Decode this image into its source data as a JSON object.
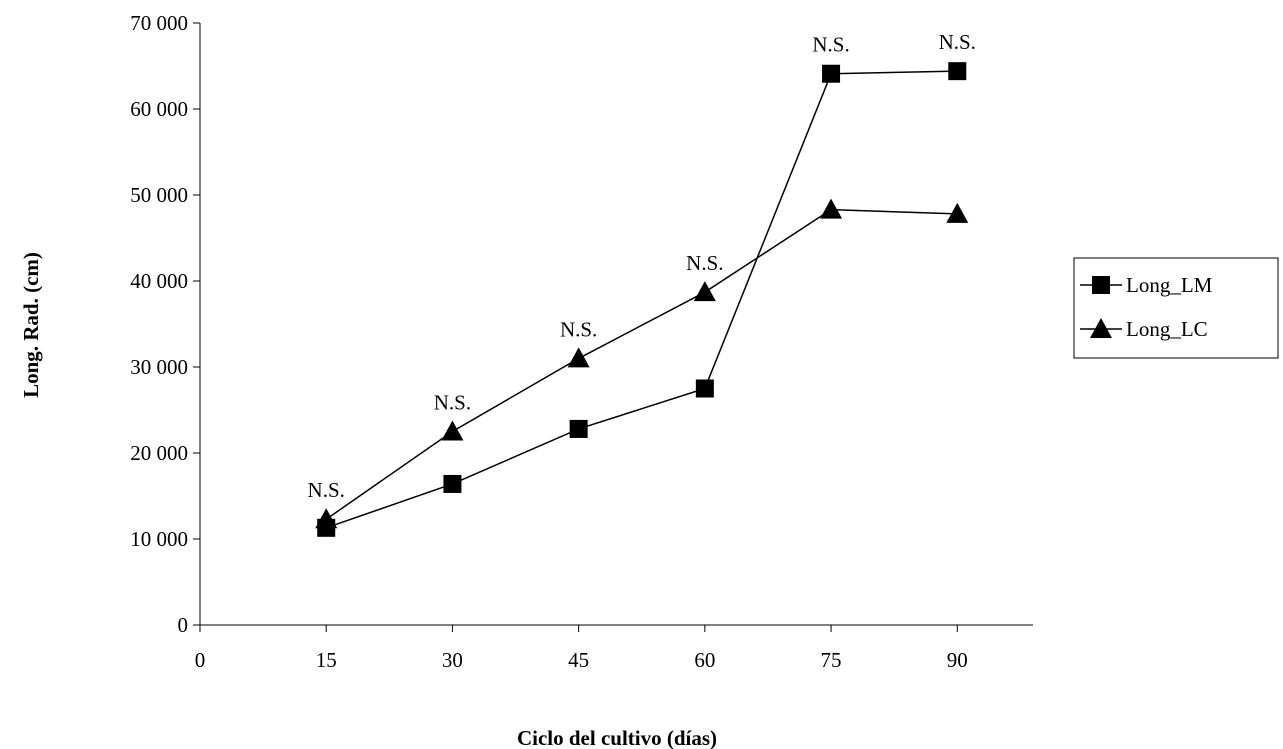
{
  "chart_data": {
    "type": "line",
    "title": "",
    "xlabel": "Ciclo del cultivo (días)",
    "ylabel": "Long. Rad. (cm)",
    "xlim": [
      0,
      99
    ],
    "ylim": [
      0,
      70000
    ],
    "x_ticks": [
      0,
      15,
      30,
      45,
      60,
      75,
      90
    ],
    "y_ticks": [
      0,
      10000,
      20000,
      30000,
      40000,
      50000,
      60000,
      70000
    ],
    "y_tick_labels": [
      "0",
      "10 000",
      "20 000",
      "30 000",
      "40 000",
      "50 000",
      "60 000",
      "70 000"
    ],
    "grid": false,
    "legend_position": "right",
    "x": [
      15,
      30,
      45,
      60,
      75,
      90
    ],
    "series": [
      {
        "name": "Long_LM",
        "marker": "square",
        "values": [
          11300,
          16400,
          22800,
          27500,
          64100,
          64400
        ]
      },
      {
        "name": "Long_LC",
        "marker": "triangle",
        "values": [
          12300,
          22500,
          31000,
          38700,
          48300,
          47800
        ]
      }
    ],
    "annotations": [
      {
        "x": 15,
        "text": "N.S."
      },
      {
        "x": 30,
        "text": "N.S."
      },
      {
        "x": 45,
        "text": "N.S."
      },
      {
        "x": 60,
        "text": "N.S."
      },
      {
        "x": 75,
        "text": "N.S."
      },
      {
        "x": 90,
        "text": "N.S."
      }
    ],
    "colors": {
      "line": "#000000",
      "marker": "#000000"
    }
  }
}
